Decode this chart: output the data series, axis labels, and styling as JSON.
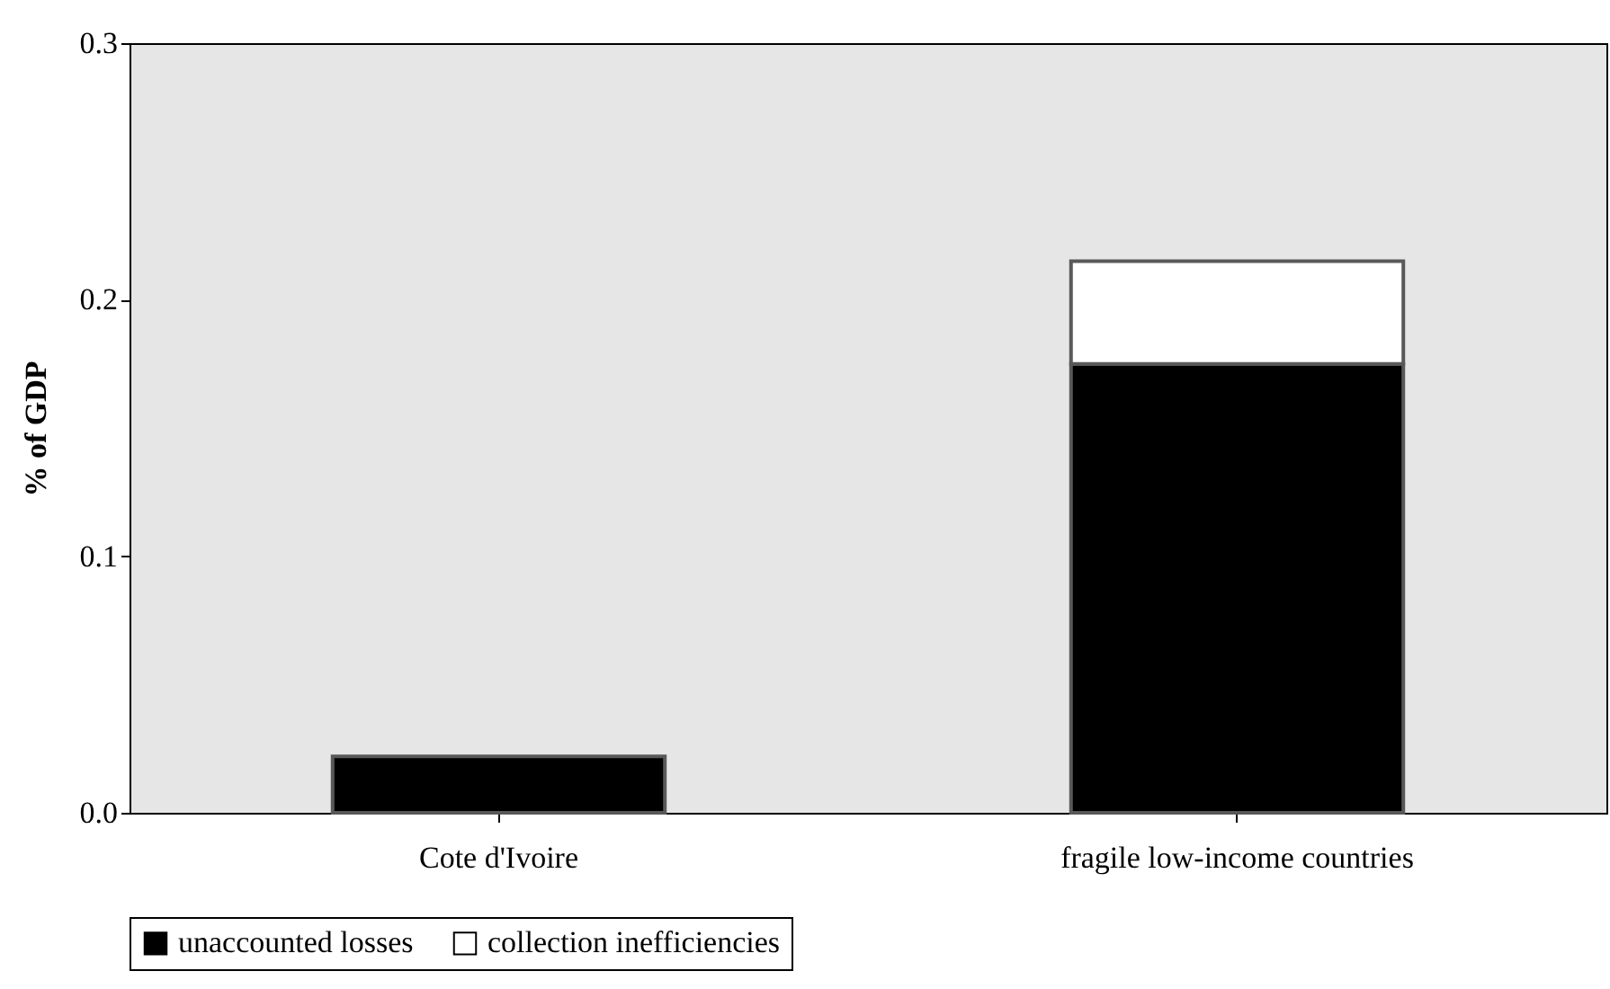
{
  "chart_data": {
    "type": "bar",
    "stacked": true,
    "ylabel": "% of GDP",
    "categories": [
      "Cote d'Ivoire",
      "fragile low-income countries"
    ],
    "series": [
      {
        "name": "unaccounted losses",
        "color": "#000000",
        "values": [
          0.022,
          0.175
        ]
      },
      {
        "name": "collection inefficiencies",
        "color": "#ffffff",
        "values": [
          null,
          0.04
        ]
      }
    ],
    "ylim": [
      0,
      0.3
    ],
    "yticks": [
      {
        "value": 0,
        "label": "0.0"
      },
      {
        "value": 0.1,
        "label": "0.1"
      },
      {
        "value": 0.2,
        "label": "0.2"
      },
      {
        "value": 0.3,
        "label": "0.3"
      }
    ],
    "grid": false,
    "legend": "bottom"
  }
}
